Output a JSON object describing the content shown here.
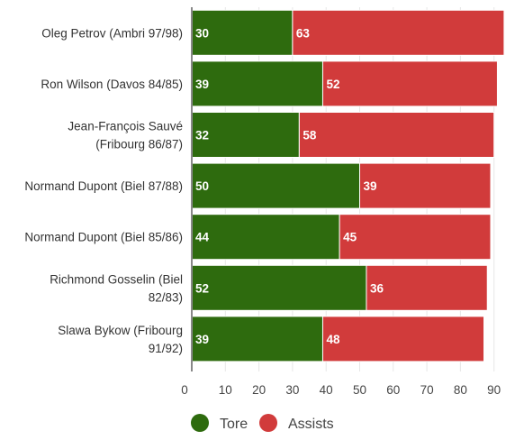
{
  "chart_data": {
    "type": "bar",
    "orientation": "horizontal",
    "stacked": true,
    "categories": [
      "Oleg Petrov (Ambri 97/98)",
      "Ron Wilson (Davos 84/85)",
      "Jean-François Sauvé (Fribourg 86/87)",
      "Normand Dupont (Biel 87/88)",
      "Normand Dupont (Biel 85/86)",
      "Richmond Gosselin (Biel 82/83)",
      "Slawa Bykow (Fribourg 91/92)"
    ],
    "series": [
      {
        "name": "Tore",
        "color": "#2e6b0e",
        "values": [
          30,
          39,
          32,
          50,
          44,
          52,
          39
        ]
      },
      {
        "name": "Assists",
        "color": "#d13b3b",
        "values": [
          63,
          52,
          58,
          39,
          45,
          36,
          48
        ]
      }
    ],
    "xlim": [
      0,
      93
    ],
    "x_ticks": [
      "0",
      "10",
      "20",
      "30",
      "40",
      "50",
      "60",
      "70",
      "80",
      "90"
    ],
    "title": "",
    "xlabel": "",
    "ylabel": "",
    "grid": true,
    "legend_position": "bottom-center"
  }
}
